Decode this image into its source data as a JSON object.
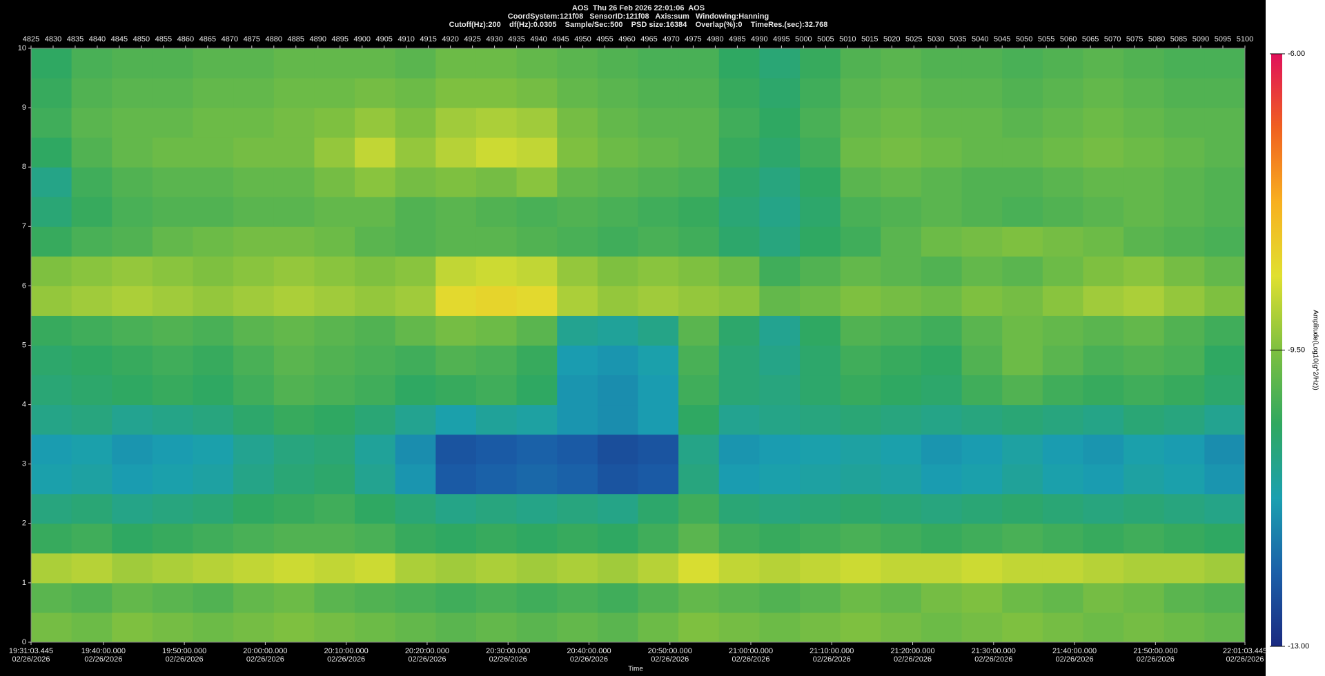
{
  "chart_data": {
    "type": "heatmap",
    "title": "AOS  Thu 26 Feb 2026 22:01:06  AOS",
    "subtitle": [
      "CoordSystem:121f08   SensorID:121f08   Axis:sum   Windowing:Hanning",
      "Cutoff(Hz):200    df(Hz):0.0305    Sample/Sec:500    PSD size:16384    Overlap(%):0    TimeRes.(sec):32.768"
    ],
    "xlabel": "Time",
    "xlim": [
      "2026-02-26T19:31:03.445",
      "2026-02-26T22:01:03.445"
    ],
    "xticks": [
      {
        "value": "2026-02-26T19:31:03.445",
        "label": [
          "19:31:03.445",
          "02/26/2026"
        ]
      },
      {
        "value": "2026-02-26T19:40:00.000",
        "label": [
          "19:40:00.000",
          "02/26/2026"
        ]
      },
      {
        "value": "2026-02-26T19:50:00.000",
        "label": [
          "19:50:00.000",
          "02/26/2026"
        ]
      },
      {
        "value": "2026-02-26T20:00:00.000",
        "label": [
          "20:00:00.000",
          "02/26/2026"
        ]
      },
      {
        "value": "2026-02-26T20:10:00.000",
        "label": [
          "20:10:00.000",
          "02/26/2026"
        ]
      },
      {
        "value": "2026-02-26T20:20:00.000",
        "label": [
          "20:20:00.000",
          "02/26/2026"
        ]
      },
      {
        "value": "2026-02-26T20:30:00.000",
        "label": [
          "20:30:00.000",
          "02/26/2026"
        ]
      },
      {
        "value": "2026-02-26T20:40:00.000",
        "label": [
          "20:40:00.000",
          "02/26/2026"
        ]
      },
      {
        "value": "2026-02-26T20:50:00.000",
        "label": [
          "20:50:00.000",
          "02/26/2026"
        ]
      },
      {
        "value": "2026-02-26T21:00:00.000",
        "label": [
          "21:00:00.000",
          "02/26/2026"
        ]
      },
      {
        "value": "2026-02-26T21:10:00.000",
        "label": [
          "21:10:00.000",
          "02/26/2026"
        ]
      },
      {
        "value": "2026-02-26T21:20:00.000",
        "label": [
          "21:20:00.000",
          "02/26/2026"
        ]
      },
      {
        "value": "2026-02-26T21:30:00.000",
        "label": [
          "21:30:00.000",
          "02/26/2026"
        ]
      },
      {
        "value": "2026-02-26T21:40:00.000",
        "label": [
          "21:40:00.000",
          "02/26/2026"
        ]
      },
      {
        "value": "2026-02-26T21:50:00.000",
        "label": [
          "21:50:00.000",
          "02/26/2026"
        ]
      },
      {
        "value": "2026-02-26T22:01:03.445",
        "label": [
          "22:01:03.445",
          "02/26/2026"
        ]
      }
    ],
    "x2lim": [
      4825,
      5100
    ],
    "x2ticks": [
      4825,
      4830,
      4835,
      4840,
      4845,
      4850,
      4855,
      4860,
      4865,
      4870,
      4875,
      4880,
      4885,
      4890,
      4895,
      4900,
      4905,
      4910,
      4915,
      4920,
      4925,
      4930,
      4935,
      4940,
      4945,
      4950,
      4955,
      4960,
      4965,
      4970,
      4975,
      4980,
      4985,
      4990,
      4995,
      5000,
      5005,
      5010,
      5015,
      5020,
      5025,
      5030,
      5035,
      5040,
      5045,
      5050,
      5055,
      5060,
      5065,
      5070,
      5075,
      5080,
      5085,
      5090,
      5095,
      5100
    ],
    "ylim": [
      0,
      10
    ],
    "yticks": [
      0,
      1,
      2,
      3,
      4,
      5,
      6,
      7,
      8,
      9,
      10
    ],
    "xbins": [
      "2026-02-26T19:31:03.445",
      "2026-02-26T19:36:03.445",
      "2026-02-26T19:41:03.445",
      "2026-02-26T19:46:03.445",
      "2026-02-26T19:51:03.445",
      "2026-02-26T19:56:03.445",
      "2026-02-26T20:01:03.445",
      "2026-02-26T20:06:03.445",
      "2026-02-26T20:11:03.445",
      "2026-02-26T20:16:03.445",
      "2026-02-26T20:21:03.445",
      "2026-02-26T20:26:03.445",
      "2026-02-26T20:31:03.445",
      "2026-02-26T20:36:03.445",
      "2026-02-26T20:41:03.445",
      "2026-02-26T20:46:03.445",
      "2026-02-26T20:51:03.445",
      "2026-02-26T20:56:03.445",
      "2026-02-26T21:01:03.445",
      "2026-02-26T21:06:03.445",
      "2026-02-26T21:11:03.445",
      "2026-02-26T21:16:03.445",
      "2026-02-26T21:21:03.445",
      "2026-02-26T21:26:03.445",
      "2026-02-26T21:31:03.445",
      "2026-02-26T21:36:03.445",
      "2026-02-26T21:41:03.445",
      "2026-02-26T21:46:03.445",
      "2026-02-26T21:51:03.445",
      "2026-02-26T21:56:03.445",
      "2026-02-26T22:01:03.445"
    ],
    "ybins": [
      0,
      0.5,
      1,
      1.5,
      2,
      2.5,
      3,
      3.5,
      4,
      4.5,
      5,
      5.5,
      6,
      6.5,
      7,
      7.5,
      8,
      8.5,
      9,
      9.5,
      10
    ],
    "z": [
      [
        -9.6,
        -9.7,
        -9.5,
        -9.6,
        -9.7,
        -9.6,
        -9.5,
        -9.6,
        -9.7,
        -9.8,
        -9.9,
        -9.8,
        -9.9,
        -9.8,
        -9.9,
        -9.7,
        -9.5,
        -9.6,
        -9.7,
        -9.6,
        -9.5,
        -9.6,
        -9.7,
        -9.6,
        -9.5,
        -9.6,
        -9.7,
        -9.6,
        -9.7,
        -9.8
      ],
      [
        -9.9,
        -10.0,
        -9.8,
        -9.9,
        -10.0,
        -9.8,
        -9.7,
        -9.9,
        -10.0,
        -10.1,
        -10.2,
        -10.1,
        -10.2,
        -10.1,
        -10.2,
        -10.0,
        -9.8,
        -9.9,
        -10.0,
        -9.9,
        -9.7,
        -9.8,
        -9.6,
        -9.5,
        -9.7,
        -9.8,
        -9.6,
        -9.7,
        -9.9,
        -10.0
      ],
      [
        -9.1,
        -9.0,
        -9.2,
        -9.1,
        -9.0,
        -8.9,
        -8.8,
        -8.9,
        -8.8,
        -9.1,
        -9.2,
        -9.1,
        -9.2,
        -9.1,
        -9.2,
        -9.0,
        -8.7,
        -8.9,
        -9.0,
        -8.9,
        -8.8,
        -8.9,
        -8.9,
        -8.8,
        -8.9,
        -8.9,
        -9.0,
        -9.1,
        -9.1,
        -9.2
      ],
      [
        -10.3,
        -10.2,
        -10.4,
        -10.3,
        -10.2,
        -10.1,
        -10.0,
        -10.0,
        -10.1,
        -10.3,
        -10.4,
        -10.3,
        -10.4,
        -10.3,
        -10.4,
        -10.2,
        -9.9,
        -10.2,
        -10.3,
        -10.2,
        -10.1,
        -10.2,
        -10.3,
        -10.2,
        -10.1,
        -10.2,
        -10.3,
        -10.2,
        -10.3,
        -10.4
      ],
      [
        -10.7,
        -10.6,
        -10.8,
        -10.7,
        -10.6,
        -10.4,
        -10.3,
        -10.2,
        -10.4,
        -10.6,
        -10.8,
        -10.7,
        -10.8,
        -10.7,
        -10.8,
        -10.5,
        -10.2,
        -10.6,
        -10.7,
        -10.6,
        -10.5,
        -10.6,
        -10.7,
        -10.6,
        -10.5,
        -10.6,
        -10.7,
        -10.6,
        -10.7,
        -10.8
      ],
      [
        -11.2,
        -11.1,
        -11.3,
        -11.2,
        -11.1,
        -10.8,
        -10.6,
        -10.5,
        -10.9,
        -11.4,
        -12.2,
        -12.1,
        -12.0,
        -12.1,
        -12.3,
        -12.2,
        -10.7,
        -11.3,
        -11.2,
        -11.1,
        -11.0,
        -11.1,
        -11.3,
        -11.2,
        -11.0,
        -11.2,
        -11.3,
        -11.1,
        -11.2,
        -11.4
      ],
      [
        -11.3,
        -11.2,
        -11.4,
        -11.3,
        -11.2,
        -10.9,
        -10.7,
        -10.6,
        -11.0,
        -11.5,
        -12.3,
        -12.2,
        -12.1,
        -12.2,
        -12.4,
        -12.3,
        -10.8,
        -11.4,
        -11.3,
        -11.2,
        -11.1,
        -11.2,
        -11.4,
        -11.3,
        -11.1,
        -11.3,
        -11.4,
        -11.2,
        -11.3,
        -11.5
      ],
      [
        -10.8,
        -10.7,
        -10.9,
        -10.8,
        -10.7,
        -10.5,
        -10.3,
        -10.4,
        -10.6,
        -10.9,
        -11.2,
        -11.0,
        -11.1,
        -11.4,
        -11.5,
        -11.3,
        -10.4,
        -10.9,
        -10.8,
        -10.7,
        -10.6,
        -10.7,
        -10.8,
        -10.7,
        -10.6,
        -10.7,
        -10.8,
        -10.6,
        -10.7,
        -10.9
      ],
      [
        -10.6,
        -10.5,
        -10.4,
        -10.3,
        -10.4,
        -10.2,
        -10.0,
        -10.1,
        -10.2,
        -10.4,
        -10.3,
        -10.2,
        -10.4,
        -11.4,
        -11.5,
        -11.3,
        -10.2,
        -10.6,
        -10.7,
        -10.5,
        -10.3,
        -10.4,
        -10.5,
        -10.2,
        -10.0,
        -10.2,
        -10.3,
        -10.2,
        -10.3,
        -10.5
      ],
      [
        -10.5,
        -10.4,
        -10.3,
        -10.2,
        -10.3,
        -10.1,
        -9.9,
        -10.0,
        -10.1,
        -10.2,
        -10.0,
        -10.1,
        -10.3,
        -11.3,
        -11.4,
        -11.2,
        -10.1,
        -10.6,
        -10.8,
        -10.5,
        -10.2,
        -10.3,
        -10.4,
        -10.0,
        -9.7,
        -9.9,
        -10.1,
        -10.0,
        -10.1,
        -10.4
      ],
      [
        -10.3,
        -10.2,
        -10.1,
        -10.0,
        -10.1,
        -9.9,
        -9.8,
        -9.9,
        -10.0,
        -9.8,
        -9.6,
        -9.7,
        -9.9,
        -10.9,
        -11.0,
        -10.8,
        -9.9,
        -10.5,
        -10.9,
        -10.4,
        -10.0,
        -10.1,
        -10.2,
        -9.9,
        -9.7,
        -9.8,
        -9.9,
        -9.8,
        -10.0,
        -10.2
      ],
      [
        -9.3,
        -9.2,
        -9.1,
        -9.2,
        -9.3,
        -9.2,
        -9.1,
        -9.2,
        -9.3,
        -9.2,
        -8.5,
        -8.4,
        -8.5,
        -9.1,
        -9.3,
        -9.2,
        -9.3,
        -9.4,
        -9.8,
        -9.7,
        -9.5,
        -9.6,
        -9.7,
        -9.5,
        -9.6,
        -9.4,
        -9.2,
        -9.1,
        -9.3,
        -9.5
      ],
      [
        -9.5,
        -9.4,
        -9.3,
        -9.4,
        -9.5,
        -9.4,
        -9.3,
        -9.4,
        -9.5,
        -9.4,
        -8.9,
        -8.8,
        -8.9,
        -9.3,
        -9.5,
        -9.4,
        -9.5,
        -9.7,
        -10.2,
        -10.0,
        -9.8,
        -9.9,
        -10.0,
        -9.8,
        -9.9,
        -9.7,
        -9.5,
        -9.4,
        -9.6,
        -9.8
      ],
      [
        -10.3,
        -10.1,
        -10.0,
        -9.8,
        -9.7,
        -9.6,
        -9.6,
        -9.7,
        -9.9,
        -10.0,
        -9.9,
        -9.9,
        -10.0,
        -10.1,
        -10.2,
        -10.1,
        -10.2,
        -10.5,
        -10.7,
        -10.4,
        -10.2,
        -9.9,
        -9.7,
        -9.6,
        -9.5,
        -9.6,
        -9.7,
        -9.9,
        -10.0,
        -10.1
      ],
      [
        -10.6,
        -10.3,
        -10.1,
        -10.0,
        -10.0,
        -9.9,
        -9.9,
        -9.8,
        -9.8,
        -10.0,
        -9.9,
        -10.0,
        -10.1,
        -10.0,
        -10.1,
        -10.2,
        -10.3,
        -10.6,
        -10.8,
        -10.5,
        -10.1,
        -10.0,
        -9.9,
        -10.0,
        -10.1,
        -10.0,
        -9.9,
        -9.8,
        -9.9,
        -10.0
      ],
      [
        -10.8,
        -10.2,
        -10.0,
        -9.9,
        -9.9,
        -9.8,
        -9.8,
        -9.6,
        -9.4,
        -9.6,
        -9.5,
        -9.6,
        -9.4,
        -9.8,
        -9.9,
        -10.0,
        -10.1,
        -10.5,
        -10.7,
        -10.4,
        -9.9,
        -9.8,
        -9.9,
        -10.0,
        -10.0,
        -9.9,
        -9.8,
        -9.8,
        -9.9,
        -10.0
      ],
      [
        -10.4,
        -10.0,
        -9.8,
        -9.7,
        -9.7,
        -9.6,
        -9.6,
        -9.3,
        -8.9,
        -9.3,
        -9.0,
        -8.8,
        -8.9,
        -9.5,
        -9.7,
        -9.8,
        -9.9,
        -10.3,
        -10.5,
        -10.2,
        -9.7,
        -9.6,
        -9.7,
        -9.8,
        -9.8,
        -9.7,
        -9.6,
        -9.7,
        -9.8,
        -9.9
      ],
      [
        -10.2,
        -9.9,
        -9.8,
        -9.8,
        -9.7,
        -9.7,
        -9.6,
        -9.5,
        -9.3,
        -9.5,
        -9.2,
        -9.1,
        -9.2,
        -9.6,
        -9.8,
        -9.9,
        -9.9,
        -10.2,
        -10.4,
        -10.1,
        -9.8,
        -9.7,
        -9.8,
        -9.8,
        -9.9,
        -9.8,
        -9.7,
        -9.8,
        -9.9,
        -9.9
      ],
      [
        -10.3,
        -10.0,
        -9.9,
        -9.9,
        -9.8,
        -9.8,
        -9.7,
        -9.7,
        -9.6,
        -9.7,
        -9.5,
        -9.5,
        -9.6,
        -9.8,
        -9.9,
        -10.0,
        -10.0,
        -10.3,
        -10.5,
        -10.2,
        -9.9,
        -9.8,
        -9.9,
        -9.9,
        -10.0,
        -9.9,
        -9.8,
        -9.9,
        -10.0,
        -10.0
      ],
      [
        -10.4,
        -10.1,
        -10.0,
        -10.0,
        -9.9,
        -9.9,
        -9.8,
        -9.8,
        -9.8,
        -9.9,
        -9.7,
        -9.7,
        -9.8,
        -9.9,
        -10.0,
        -10.1,
        -10.1,
        -10.4,
        -10.6,
        -10.3,
        -10.0,
        -9.9,
        -10.0,
        -10.0,
        -10.1,
        -10.0,
        -9.9,
        -10.0,
        -10.1,
        -10.1
      ]
    ],
    "colorbar": {
      "label": "Amplitude(Log10(g^2/Hz))",
      "zlim": [
        -13,
        -6
      ],
      "ticks": [
        {
          "value": -13,
          "label": "-13.00"
        },
        {
          "value": -9.5,
          "label": "-9.50"
        },
        {
          "value": -6,
          "label": "-6.00"
        }
      ],
      "colormap": [
        "#1a2a80",
        "#1a5fa8",
        "#1aa0b0",
        "#30a860",
        "#7ec040",
        "#e0e030",
        "#f8b020",
        "#f06020",
        "#e0105a"
      ]
    }
  }
}
